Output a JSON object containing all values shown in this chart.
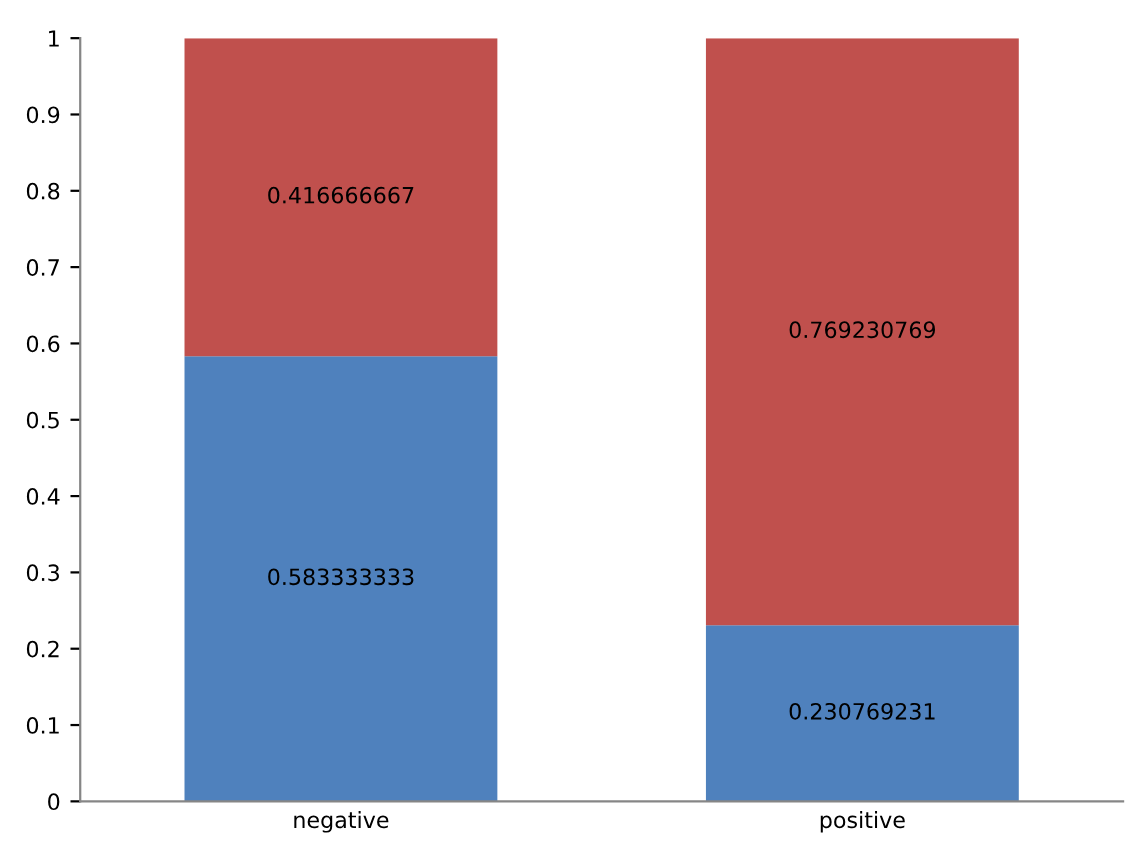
{
  "chart_data": {
    "type": "bar",
    "stacked": true,
    "categories": [
      "negative",
      "positive"
    ],
    "series": [
      {
        "color": "#4f81bd",
        "values": [
          0.583333333,
          0.230769231
        ]
      },
      {
        "color": "#c0504d",
        "values": [
          0.416666667,
          0.769230769
        ]
      }
    ],
    "ylim": [
      0,
      1
    ],
    "yticks": [
      0,
      0.1,
      0.2,
      0.3,
      0.4,
      0.5,
      0.6,
      0.7,
      0.8,
      0.9,
      1
    ],
    "grid": false,
    "legend": false,
    "data_labels": true
  }
}
